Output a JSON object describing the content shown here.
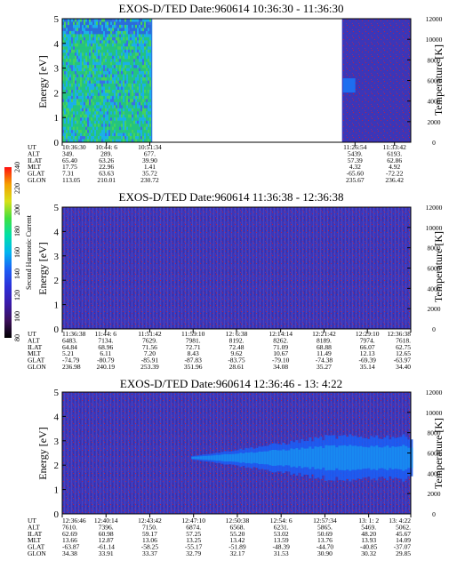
{
  "chart_data": [
    {
      "type": "heatmap",
      "title": "EXOS-D/TED   Date:960614   10:36:30 - 11:36:30",
      "ylabel": "Energy [eV]",
      "ylabel_right": "Temperature [K]",
      "ylim": [
        0,
        5
      ],
      "yticks": [
        "0",
        "1",
        "2",
        "3",
        "4",
        "5"
      ],
      "ylim_right": [
        0,
        12000
      ],
      "yticks_right": [
        "0",
        "2000",
        "4000",
        "6000",
        "8000",
        "10000",
        "12000"
      ],
      "time_range": [
        "10:36:30",
        "11:36:30"
      ],
      "data_segments": [
        [
          "10:36:30",
          "10:52:00"
        ],
        [
          "11:24:40",
          "11:36:30"
        ]
      ],
      "blob": {
        "center_ev": 2.3,
        "level": 180
      },
      "labels": [
        "UT",
        "ALT",
        "ILAT",
        "MLT",
        "GLAT",
        "GLON"
      ],
      "columns": [
        {
          "time": "10:36:30",
          "values": [
            "10:36:30",
            "349.",
            "65.40",
            "17.75",
            "7.31",
            "113.05"
          ]
        },
        {
          "time": "10:44:06",
          "values": [
            "10:44: 6",
            "289.",
            "63.26",
            "22.96",
            "63.63",
            "210.01"
          ]
        },
        {
          "time": "10:51:34",
          "values": [
            "10:51:34",
            "677.",
            "39.90",
            "1.41",
            "35.72",
            "230.72"
          ]
        },
        {
          "time": "11:26:54",
          "values": [
            "11:26:54",
            "5439.",
            "57.39",
            "4.32",
            "-65.60",
            "235.67"
          ]
        },
        {
          "time": "11:33:42",
          "values": [
            "11:33:42",
            "6193.",
            "62.86",
            "4.92",
            "-72.22",
            "236.42"
          ]
        }
      ]
    },
    {
      "type": "heatmap",
      "title": "EXOS-D/TED   Date:960614   11:36:38 - 12:36:38",
      "ylabel": "Energy [eV]",
      "ylabel_right": "Temperature [K]",
      "ylim": [
        0,
        5
      ],
      "yticks": [
        "0",
        "1",
        "2",
        "3",
        "4",
        "5"
      ],
      "ylim_right": [
        0,
        12000
      ],
      "yticks_right": [
        "0",
        "2000",
        "4000",
        "6000",
        "8000",
        "10000",
        "12000"
      ],
      "time_range": [
        "11:36:38",
        "12:36:38"
      ],
      "labels": [
        "UT",
        "ALT",
        "ILAT",
        "MLT",
        "GLAT",
        "GLON"
      ],
      "columns": [
        {
          "time": "11:36:38",
          "values": [
            "11:36:38",
            "6483.",
            "64.84",
            "5.21",
            "-74.79",
            "236.98"
          ]
        },
        {
          "time": "11:44:06",
          "values": [
            "11:44: 6",
            "7134.",
            "68.96",
            "6.11",
            "-80.79",
            "240.19"
          ]
        },
        {
          "time": "11:51:42",
          "values": [
            "11:51:42",
            "7629.",
            "71.56",
            "7.20",
            "-85.91",
            "253.39"
          ]
        },
        {
          "time": "11:59:10",
          "values": [
            "11:59:10",
            "7981.",
            "72.71",
            "8.43",
            "-87.83",
            "351.96"
          ]
        },
        {
          "time": "12:06:38",
          "values": [
            "12: 6:38",
            "8192.",
            "72.48",
            "9.62",
            "-83.75",
            "28.61"
          ]
        },
        {
          "time": "12:14:14",
          "values": [
            "12:14:14",
            "8262.",
            "71.09",
            "10.67",
            "-79.10",
            "34.08"
          ]
        },
        {
          "time": "12:21:42",
          "values": [
            "12:21:42",
            "8189.",
            "68.88",
            "11.49",
            "-74.38",
            "35.27"
          ]
        },
        {
          "time": "12:29:10",
          "values": [
            "12:29:10",
            "7974.",
            "66.07",
            "12.13",
            "-69.39",
            "35.14"
          ]
        },
        {
          "time": "12:36:38",
          "values": [
            "12:36:38",
            "7618.",
            "62.75",
            "12.65",
            "-63.97",
            "34.40"
          ]
        }
      ]
    },
    {
      "type": "heatmap",
      "title": "EXOS-D/TED   Date:960614   12:36:46 - 13: 4:22",
      "ylabel": "Energy [eV]",
      "ylabel_right": "Temperature [K]",
      "ylim": [
        0,
        5
      ],
      "yticks": [
        "0",
        "1",
        "2",
        "3",
        "4",
        "5"
      ],
      "ylim_right": [
        0,
        12000
      ],
      "yticks_right": [
        "0",
        "2000",
        "4000",
        "6000",
        "8000",
        "10000",
        "12000"
      ],
      "time_range": [
        "12:36:46",
        "13:04:22"
      ],
      "band": {
        "start_time": "12:47:00",
        "center_ev": 2.3,
        "max_halfwidth_ev": 0.9
      },
      "labels": [
        "UT",
        "ALT",
        "ILAT",
        "MLT",
        "GLAT",
        "GLON"
      ],
      "columns": [
        {
          "time": "12:36:46",
          "values": [
            "12:36:46",
            "7610.",
            "62.69",
            "13.66",
            "-63.87",
            "34.38"
          ]
        },
        {
          "time": "12:40:14",
          "values": [
            "12:40:14",
            "7396.",
            "60.98",
            "12.87",
            "-61.14",
            "33.91"
          ]
        },
        {
          "time": "12:43:42",
          "values": [
            "12:43:42",
            "7150.",
            "59.17",
            "13.06",
            "-58.25",
            "33.37"
          ]
        },
        {
          "time": "12:47:10",
          "values": [
            "12:47:10",
            "6874.",
            "57.25",
            "13.25",
            "-55.17",
            "32.79"
          ]
        },
        {
          "time": "12:50:38",
          "values": [
            "12:50:38",
            "6568.",
            "55.20",
            "13.42",
            "-51.89",
            "32.17"
          ]
        },
        {
          "time": "12:54:06",
          "values": [
            "12:54: 6",
            "6231.",
            "53.02",
            "13.59",
            "-48.39",
            "31.53"
          ]
        },
        {
          "time": "12:57:34",
          "values": [
            "12:57:34",
            "5865.",
            "50.69",
            "13.76",
            "-44.70",
            "30.90"
          ]
        },
        {
          "time": "13:01:02",
          "values": [
            "13: 1: 2",
            "5469.",
            "48.20",
            "13.93",
            "-40.85",
            "30.32"
          ]
        },
        {
          "time": "13:04:22",
          "values": [
            "13: 4:22",
            "5062.",
            "45.67",
            "14.09",
            "-37.07",
            "29.85"
          ]
        }
      ]
    }
  ],
  "colorbar": {
    "label": "Second Harmonic Current",
    "ticks": [
      "80",
      "100",
      "120",
      "140",
      "160",
      "180",
      "200",
      "220",
      "240"
    ],
    "range": [
      80,
      240
    ],
    "colors": [
      "#000000",
      "#3b0f5a",
      "#3a1aa8",
      "#2c2fd8",
      "#1c5ef5",
      "#00b4f0",
      "#00e0a8",
      "#40e040",
      "#d8e018",
      "#f5a000",
      "#ff1010"
    ]
  },
  "colors": {
    "background_field": "#3b36b8",
    "speckle": "#b02050",
    "noise_green": "#20d060",
    "noise_cyan": "#18b8e8"
  }
}
